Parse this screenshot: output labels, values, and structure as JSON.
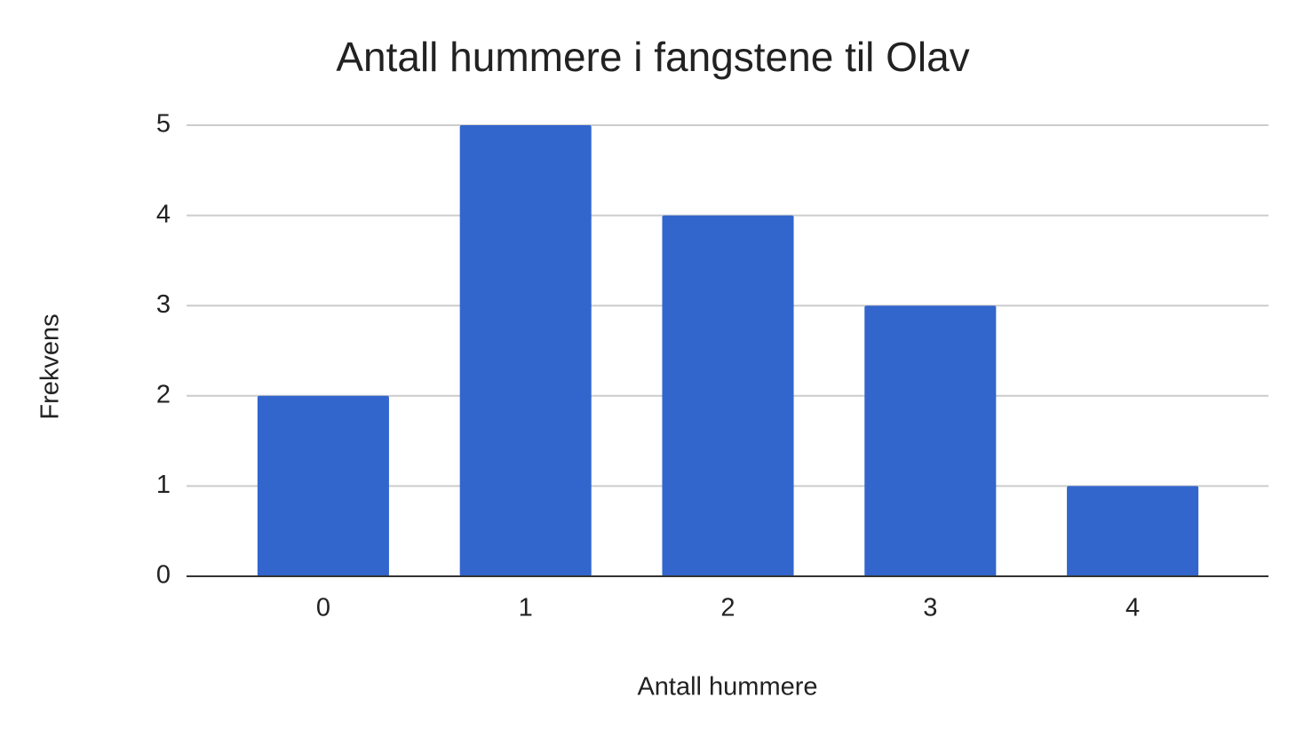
{
  "chart_data": {
    "type": "bar",
    "title": "Antall hummere i fangstene til Olav",
    "x_label": "Antall hummere",
    "y_label": "Frekvens",
    "categories": [
      "0",
      "1",
      "2",
      "3",
      "4"
    ],
    "values": [
      2,
      5,
      4,
      3,
      1
    ],
    "color": "#3366cc",
    "ylim": [
      0,
      5
    ],
    "yticks": [
      0,
      1,
      2,
      3,
      4,
      5
    ],
    "grid": true
  }
}
